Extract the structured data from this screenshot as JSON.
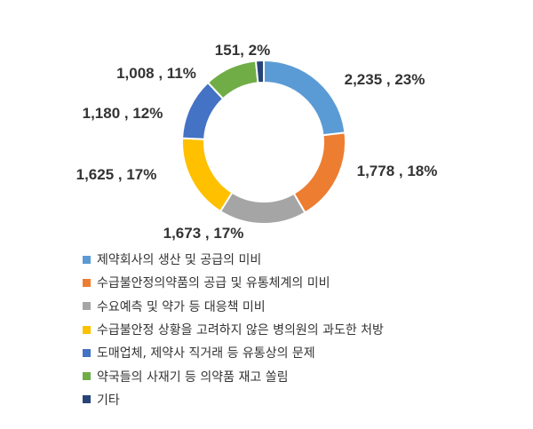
{
  "chart_data": {
    "type": "pie",
    "style": "donut",
    "legend": "bottom",
    "slices": [
      {
        "name": "제약회사의 생산 및 공급의 미비",
        "value": 2235,
        "percent": 23,
        "label": "2,235 , 23%",
        "color": "#5B9BD5"
      },
      {
        "name": "수급불안정의약품의 공급 및 유통체계의 미비",
        "value": 1778,
        "percent": 18,
        "label": "1,778 , 18%",
        "color": "#ED7D31"
      },
      {
        "name": "수요예측 및 약가 등 대응책 미비",
        "value": 1673,
        "percent": 17,
        "label": "1,673 , 17%",
        "color": "#A5A5A5"
      },
      {
        "name": "수급불안정 상황을 고려하지 않은 병의원의 과도한 처방",
        "value": 1625,
        "percent": 17,
        "label": "1,625 , 17%",
        "color": "#FFC000"
      },
      {
        "name": "도매업체, 제약사 직거래 등 유통상의 문제",
        "value": 1180,
        "percent": 12,
        "label": "1,180 , 12%",
        "color": "#4472C4"
      },
      {
        "name": "약국들의 사재기 등 의약품 재고 쏠림",
        "value": 1008,
        "percent": 11,
        "label": "1,008 , 11%",
        "color": "#70AD47"
      },
      {
        "name": "기타",
        "value": 151,
        "percent": 2,
        "label": "151, 2%",
        "color": "#264478"
      }
    ]
  }
}
